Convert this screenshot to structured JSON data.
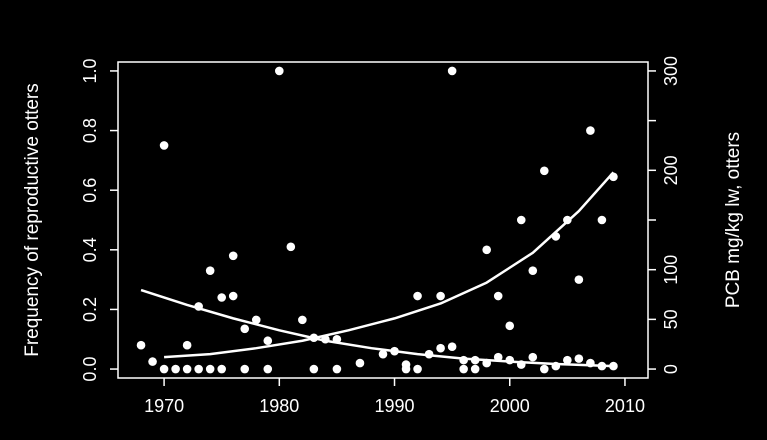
{
  "chart_data": {
    "type": "scatter",
    "xlim": [
      1966,
      2012
    ],
    "ylim_left": [
      -0.03,
      1.03
    ],
    "ylim_right": [
      -9,
      309
    ],
    "x_ticks": [
      1970,
      1980,
      1990,
      2000,
      2010
    ],
    "y_left_ticks": [
      "0.0",
      "0.2",
      "0.4",
      "0.6",
      "0.8",
      "1.0"
    ],
    "y_right_ticks": [
      "0",
      "50",
      "100",
      "200",
      "300"
    ],
    "ylabel_left": "Frequency of reproductive otters",
    "ylabel_right": "PCB mg/kg lw, otters",
    "grid": false,
    "colors": {
      "background": "#000000",
      "foreground": "#ffffff"
    },
    "points": {
      "x": [
        1968,
        1969,
        1970,
        1970,
        1971,
        1972,
        1972,
        1973,
        1973,
        1974,
        1974,
        1975,
        1975,
        1976,
        1976,
        1977,
        1977,
        1978,
        1979,
        1979,
        1980,
        1981,
        1982,
        1983,
        1983,
        1984,
        1985,
        1985,
        1987,
        1989,
        1990,
        1991,
        1991,
        1992,
        1992,
        1993,
        1994,
        1994,
        1995,
        1995,
        1996,
        1996,
        1997,
        1997,
        1998,
        1998,
        1999,
        1999,
        2000,
        2000,
        2001,
        2001,
        2002,
        2002,
        2003,
        2003,
        2004,
        2004,
        2005,
        2005,
        2006,
        2006,
        2007,
        2007,
        2008,
        2008,
        2009,
        2009
      ],
      "y": [
        0.08,
        0.025,
        0.75,
        0.0,
        0.0,
        0.08,
        0.0,
        0.21,
        0.0,
        0.33,
        0.0,
        0.24,
        0.0,
        0.38,
        0.245,
        0.135,
        0.0,
        0.165,
        0.0,
        0.095,
        1.0,
        0.41,
        0.165,
        0.105,
        0.0,
        0.1,
        0.1,
        0.0,
        0.02,
        0.05,
        0.06,
        0.015,
        0.0,
        0.245,
        0.0,
        0.05,
        0.245,
        0.07,
        1.0,
        0.075,
        0.03,
        0.0,
        0.03,
        0.0,
        0.4,
        0.02,
        0.245,
        0.04,
        0.145,
        0.03,
        0.5,
        0.015,
        0.33,
        0.04,
        0.665,
        0.0,
        0.445,
        0.01,
        0.5,
        0.03,
        0.3,
        0.035,
        0.8,
        0.02,
        0.5,
        0.01,
        0.645,
        0.01
      ]
    },
    "series": [
      {
        "x": [
          1968,
          1972,
          1976,
          1980,
          1984,
          1988,
          1992,
          1996,
          2000,
          2004,
          2009
        ],
        "y": [
          0.265,
          0.215,
          0.17,
          0.13,
          0.095,
          0.07,
          0.05,
          0.035,
          0.025,
          0.017,
          0.01
        ]
      },
      {
        "x": [
          1970,
          1974,
          1978,
          1982,
          1986,
          1990,
          1994,
          1998,
          2002,
          2006,
          2009
        ],
        "y": [
          0.04,
          0.05,
          0.07,
          0.095,
          0.13,
          0.17,
          0.22,
          0.29,
          0.39,
          0.53,
          0.66
        ]
      }
    ]
  }
}
